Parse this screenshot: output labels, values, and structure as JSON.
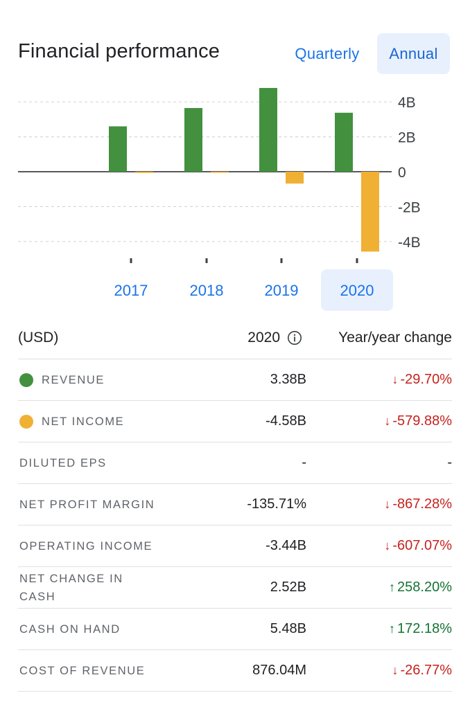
{
  "header": {
    "title": "Financial performance",
    "period_options": [
      "Quarterly",
      "Annual"
    ],
    "selected_period": "Annual"
  },
  "chart_data": {
    "type": "bar",
    "categories": [
      "2017",
      "2018",
      "2019",
      "2020"
    ],
    "series": [
      {
        "name": "Revenue",
        "color": "#43903f",
        "values": [
          2.6,
          3.65,
          4.8,
          3.38
        ]
      },
      {
        "name": "Net income",
        "color": "#f0b034",
        "values": [
          -0.07,
          -0.02,
          -0.68,
          -4.58
        ]
      }
    ],
    "yticks": [
      4,
      2,
      0,
      -2,
      -4
    ],
    "ytick_labels": [
      "4B",
      "2B",
      "0",
      "-2B",
      "-4B"
    ],
    "ylim": [
      -4.6,
      4.8
    ],
    "grid": true,
    "selected_category": "2020"
  },
  "table": {
    "header_currency": "(USD)",
    "header_year": "2020",
    "header_change": "Year/year change",
    "rows": [
      {
        "label": "REVENUE",
        "value": "3.38B",
        "change": "-29.70%",
        "direction": "down",
        "dot_color": "#43903f"
      },
      {
        "label": "NET INCOME",
        "value": "-4.58B",
        "change": "-579.88%",
        "direction": "down",
        "dot_color": "#f0b034"
      },
      {
        "label": "DILUTED EPS",
        "value": "-",
        "change": "-",
        "direction": "neutral"
      },
      {
        "label": "NET PROFIT MARGIN",
        "value": "-135.71%",
        "change": "-867.28%",
        "direction": "down"
      },
      {
        "label": "OPERATING INCOME",
        "value": "-3.44B",
        "change": "-607.07%",
        "direction": "down"
      },
      {
        "label": "NET CHANGE IN CASH",
        "value": "2.52B",
        "change": "258.20%",
        "direction": "up"
      },
      {
        "label": "CASH ON HAND",
        "value": "5.48B",
        "change": "172.18%",
        "direction": "up"
      },
      {
        "label": "COST OF REVENUE",
        "value": "876.04M",
        "change": "-26.77%",
        "direction": "down"
      }
    ]
  }
}
